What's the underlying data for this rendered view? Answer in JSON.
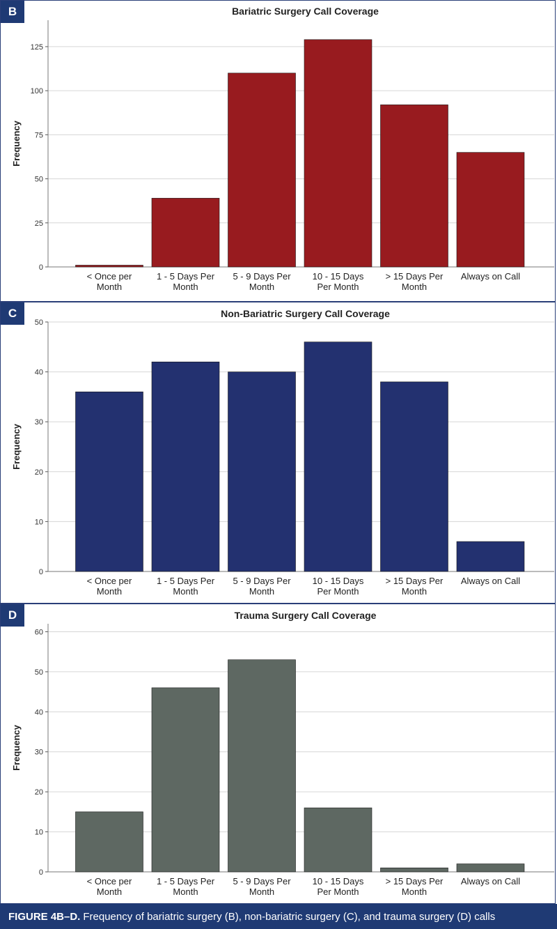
{
  "caption": {
    "label": "FIGURE 4B–D.",
    "text": "Frequency of bariatric surgery (B), non-bariatric surgery (C), and trauma surgery (D) calls"
  },
  "chart_data": [
    {
      "panel": "B",
      "type": "bar",
      "title": "Bariatric Surgery Call Coverage",
      "ylabel": "Frequency",
      "xlabel": "",
      "categories": [
        [
          "< Once per",
          "Month"
        ],
        [
          "1 - 5 Days Per",
          "Month"
        ],
        [
          "5 - 9 Days Per",
          "Month"
        ],
        [
          "10 - 15 Days",
          "Per Month"
        ],
        [
          "> 15 Days Per",
          "Month"
        ],
        [
          "Always on Call"
        ]
      ],
      "values": [
        1,
        39,
        110,
        129,
        92,
        65
      ],
      "ylim": [
        0,
        140
      ],
      "yticks": [
        0,
        25,
        50,
        75,
        100,
        125
      ],
      "color": "#981b1f",
      "grid": true
    },
    {
      "panel": "C",
      "type": "bar",
      "title": "Non-Bariatric Surgery Call Coverage",
      "ylabel": "Frequency",
      "xlabel": "",
      "categories": [
        [
          "< Once per",
          "Month"
        ],
        [
          "1 - 5 Days Per",
          "Month"
        ],
        [
          "5 - 9 Days Per",
          "Month"
        ],
        [
          "10 - 15 Days",
          "Per Month"
        ],
        [
          "> 15 Days Per",
          "Month"
        ],
        [
          "Always on Call"
        ]
      ],
      "values": [
        36,
        42,
        40,
        46,
        38,
        6
      ],
      "ylim": [
        0,
        50
      ],
      "yticks": [
        0,
        10,
        20,
        30,
        40,
        50
      ],
      "color": "#233170",
      "grid": true
    },
    {
      "panel": "D",
      "type": "bar",
      "title": "Trauma Surgery Call Coverage",
      "ylabel": "Frequency",
      "xlabel": "",
      "categories": [
        [
          "< Once per",
          "Month"
        ],
        [
          "1 - 5 Days Per",
          "Month"
        ],
        [
          "5 - 9 Days Per",
          "Month"
        ],
        [
          "10 - 15 Days",
          "Per Month"
        ],
        [
          "> 15 Days Per",
          "Month"
        ],
        [
          "Always on Call"
        ]
      ],
      "values": [
        15,
        46,
        53,
        16,
        1,
        2
      ],
      "ylim": [
        0,
        62
      ],
      "yticks": [
        0,
        10,
        20,
        30,
        40,
        50,
        60
      ],
      "color": "#5e6862",
      "grid": true
    }
  ]
}
